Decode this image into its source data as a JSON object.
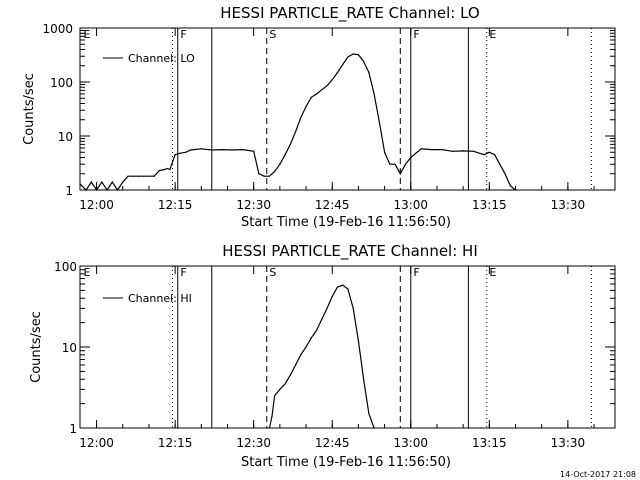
{
  "chart_data": [
    {
      "type": "line",
      "title": "HESSI PARTICLE_RATE Channel: LO",
      "xlabel": "Start Time (19-Feb-16 11:56:50)",
      "ylabel": "Counts/sec",
      "yscale": "log",
      "xlim": [
        "11:56:50",
        "13:39:00"
      ],
      "ylim": [
        1,
        1000
      ],
      "x_ticks": [
        "12:00",
        "12:15",
        "12:30",
        "12:45",
        "13:00",
        "13:15",
        "13:30"
      ],
      "y_ticks": [
        "1",
        "10",
        "100",
        "1000"
      ],
      "series": [
        {
          "name": "Channel: LO",
          "x": [
            "11:56:50",
            "11:58:00",
            "11:59:00",
            "12:00:00",
            "12:01:00",
            "12:02:00",
            "12:03:00",
            "12:04:00",
            "12:05:00",
            "12:06:00",
            "12:07:00",
            "12:08:00",
            "12:09:00",
            "12:10:00",
            "12:11:00",
            "12:12:00",
            "12:13:00",
            "12:13:30",
            "12:14:00",
            "12:15:00",
            "12:16:00",
            "12:17:00",
            "12:18:00",
            "12:20:00",
            "12:22:00",
            "12:24:00",
            "12:26:00",
            "12:28:00",
            "12:30:00",
            "12:31:00",
            "12:32:00",
            "12:33:00",
            "12:34:00",
            "12:35:00",
            "12:36:00",
            "12:37:00",
            "12:38:00",
            "12:39:00",
            "12:40:00",
            "12:41:00",
            "12:42:00",
            "12:43:00",
            "12:44:00",
            "12:45:00",
            "12:46:00",
            "12:47:00",
            "12:48:00",
            "12:49:00",
            "12:50:00",
            "12:51:00",
            "12:52:00",
            "12:53:00",
            "12:54:00",
            "12:55:00",
            "12:56:00",
            "12:57:00",
            "12:58:00",
            "12:59:00",
            "13:00:00",
            "13:02:00",
            "13:04:00",
            "13:06:00",
            "13:08:00",
            "13:10:00",
            "13:12:00",
            "13:14:00",
            "13:15:00",
            "13:16:00",
            "13:17:00",
            "13:18:00",
            "13:19:00",
            "13:20:00"
          ],
          "values": [
            1.3,
            1,
            1.4,
            1,
            1.4,
            1,
            1.4,
            1,
            1.4,
            1.8,
            1.8,
            1.8,
            1.8,
            1.8,
            1.8,
            2.3,
            2.4,
            2.5,
            2.4,
            4.5,
            4.8,
            5.0,
            5.5,
            5.8,
            5.5,
            5.6,
            5.5,
            5.6,
            5.2,
            2.0,
            1.8,
            1.8,
            2.2,
            3.0,
            4.5,
            7,
            12,
            22,
            35,
            52,
            60,
            72,
            85,
            110,
            150,
            210,
            290,
            330,
            320,
            240,
            150,
            60,
            18,
            5,
            3,
            3,
            2,
            3,
            4,
            5.8,
            5.6,
            5.6,
            5.2,
            5.3,
            5.2,
            4.5,
            5.0,
            4.5,
            3.0,
            2.0,
            1.2,
            1.0
          ]
        }
      ],
      "annotations": [
        "E",
        "F",
        "S",
        "F",
        "E"
      ]
    },
    {
      "type": "line",
      "title": "HESSI PARTICLE_RATE Channel: HI",
      "xlabel": "Start Time (19-Feb-16 11:56:50)",
      "ylabel": "Counts/sec",
      "yscale": "log",
      "xlim": [
        "11:56:50",
        "13:39:00"
      ],
      "ylim": [
        1,
        100
      ],
      "x_ticks": [
        "12:00",
        "12:15",
        "12:30",
        "12:45",
        "13:00",
        "13:15",
        "13:30"
      ],
      "y_ticks": [
        "1",
        "10",
        "100"
      ],
      "series": [
        {
          "name": "Channel: HI",
          "x": [
            "12:33:00",
            "12:33:30",
            "12:34:00",
            "12:35:00",
            "12:36:00",
            "12:37:00",
            "12:38:00",
            "12:39:00",
            "12:40:00",
            "12:41:00",
            "12:42:00",
            "12:43:00",
            "12:44:00",
            "12:45:00",
            "12:46:00",
            "12:47:00",
            "12:48:00",
            "12:49:00",
            "12:50:00",
            "12:51:00",
            "12:52:00",
            "12:53:00"
          ],
          "values": [
            1,
            1.4,
            2.5,
            3.0,
            3.5,
            4.5,
            6,
            8,
            10,
            13,
            16,
            22,
            30,
            42,
            55,
            58,
            52,
            30,
            12,
            4,
            1.5,
            1
          ]
        }
      ],
      "annotations": [
        "E",
        "F",
        "S",
        "F",
        "E"
      ]
    }
  ],
  "timestamp": "14-Oct-2017 21:08"
}
